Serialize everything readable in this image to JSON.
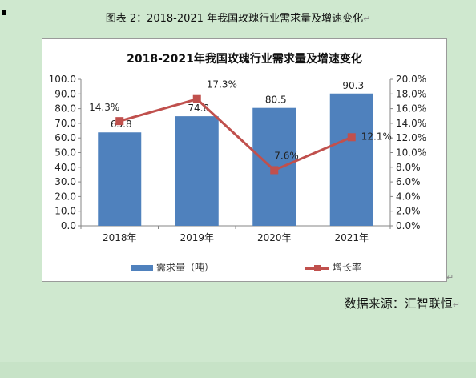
{
  "caption": {
    "text": "图表  2：2018-2021 年我国玫瑰行业需求量及增速变化",
    "mark": "↵"
  },
  "chart_data": {
    "type": "bar",
    "title": "2018-2021年我国玫瑰行业需求量及增速变化",
    "categories": [
      "2018年",
      "2019年",
      "2020年",
      "2021年"
    ],
    "series": [
      {
        "name": "需求量（吨）",
        "type": "bar",
        "axis": "left",
        "values": [
          63.8,
          74.8,
          80.5,
          90.3
        ],
        "color": "#4f81bd"
      },
      {
        "name": "增长率",
        "type": "line",
        "axis": "right",
        "values": [
          14.3,
          17.3,
          7.6,
          12.1
        ],
        "color": "#c0504d"
      }
    ],
    "bar_labels": [
      "63.8",
      "74.8",
      "80.5",
      "90.3"
    ],
    "line_labels": [
      "14.3%",
      "17.3%",
      "7.6%",
      "12.1%"
    ],
    "ylim": [
      0,
      100
    ],
    "y2lim": [
      0,
      20
    ],
    "yticks": [
      "0.0",
      "10.0",
      "20.0",
      "30.0",
      "40.0",
      "50.0",
      "60.0",
      "70.0",
      "80.0",
      "90.0",
      "100.0"
    ],
    "y2ticks": [
      "0.0%",
      "2.0%",
      "4.0%",
      "6.0%",
      "8.0%",
      "10.0%",
      "12.0%",
      "14.0%",
      "16.0%",
      "18.0%",
      "20.0%"
    ],
    "grid": false,
    "legend": "bottom"
  },
  "frame_mark": "↵",
  "source": {
    "text": "数据来源：汇智联恒",
    "mark": "↵"
  }
}
